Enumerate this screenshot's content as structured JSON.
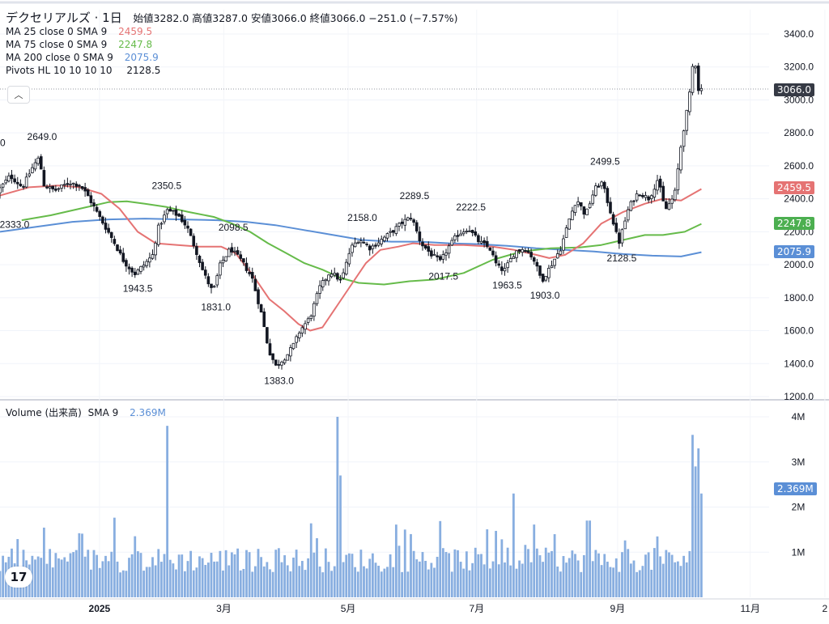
{
  "header": {
    "title": "デクセリアルズ · 1日",
    "ohlc": "始値3282.0 高値3287.0 安値3066.0 終値3066.0 −251.0 (−7.57%)"
  },
  "indicators": [
    {
      "label": "MA 25 close 0 SMA 9",
      "value": "2459.5",
      "color": "#e57373"
    },
    {
      "label": "MA 75 close 0 SMA 9",
      "value": "2247.8",
      "color": "#66bb4a"
    },
    {
      "label": "MA 200 close 0 SMA 9",
      "value": "2075.9",
      "color": "#5b8fd6"
    },
    {
      "label": "Pivots HL 10 10 10 10",
      "value": "2128.5",
      "color": "#131722"
    }
  ],
  "volume_legend": {
    "label": "Volume (出来高)",
    "sub": "SMA 9",
    "value": "2.369M"
  },
  "price_tags": {
    "last": {
      "text": "3066.0",
      "color": "#363a45"
    },
    "ma25": {
      "text": "2459.5",
      "color": "#e57373"
    },
    "ma75": {
      "text": "2247.8",
      "color": "#4caf50"
    },
    "ma200": {
      "text": "2075.9",
      "color": "#5b8fd6"
    },
    "vol": {
      "text": "2.369M",
      "color": "#5b8fd6"
    }
  },
  "chart_data": {
    "type": "candlestick",
    "price_axis": {
      "ticks": [
        1200,
        1400,
        1600,
        1800,
        2000,
        2200,
        2400,
        2600,
        2800,
        3000,
        3200,
        3400
      ],
      "labels": [
        "1200.0",
        "1400.0",
        "1600.0",
        "1800.0",
        "2000.0",
        "2200.0",
        "2400.0",
        "2600.0",
        "2800.0",
        "3000.0",
        "3200.0",
        "3400.0"
      ],
      "range": [
        1200,
        3480
      ]
    },
    "volume_axis": {
      "labels": [
        "1M",
        "2M",
        "3M",
        "4M"
      ],
      "ticks": [
        1,
        2,
        3,
        4
      ],
      "range": [
        0,
        4.4
      ]
    },
    "x_labels": [
      {
        "t": 0.12,
        "text": "2025"
      },
      {
        "t": 0.27,
        "text": "3月"
      },
      {
        "t": 0.42,
        "text": "5月"
      },
      {
        "t": 0.575,
        "text": "7月"
      },
      {
        "t": 0.745,
        "text": "9月"
      },
      {
        "t": 0.905,
        "text": "11月"
      },
      {
        "t": 0.995,
        "text": "2"
      }
    ],
    "price_anchors": [
      [
        0.0,
        2440
      ],
      [
        0.018,
        2540
      ],
      [
        0.035,
        2470
      ],
      [
        0.05,
        2600
      ],
      [
        0.058,
        2649
      ],
      [
        0.065,
        2480
      ],
      [
        0.08,
        2450
      ],
      [
        0.1,
        2500
      ],
      [
        0.115,
        2480
      ],
      [
        0.125,
        2420
      ],
      [
        0.14,
        2300
      ],
      [
        0.16,
        2150
      ],
      [
        0.175,
        2020
      ],
      [
        0.19,
        1943.5
      ],
      [
        0.205,
        2010
      ],
      [
        0.215,
        2060
      ],
      [
        0.222,
        2220
      ],
      [
        0.235,
        2330
      ],
      [
        0.25,
        2300
      ],
      [
        0.262,
        2230
      ],
      [
        0.275,
        2080
      ],
      [
        0.285,
        1950
      ],
      [
        0.298,
        1831
      ],
      [
        0.308,
        2000
      ],
      [
        0.322,
        2098.5
      ],
      [
        0.338,
        2020
      ],
      [
        0.352,
        1920
      ],
      [
        0.365,
        1700
      ],
      [
        0.375,
        1480
      ],
      [
        0.385,
        1383
      ],
      [
        0.4,
        1450
      ],
      [
        0.41,
        1520
      ],
      [
        0.418,
        1600
      ],
      [
        0.432,
        1680
      ],
      [
        0.445,
        1860
      ],
      [
        0.46,
        1960
      ],
      [
        0.475,
        1900
      ],
      [
        0.488,
        2100
      ],
      [
        0.5,
        2158
      ],
      [
        0.515,
        2100
      ],
      [
        0.53,
        2150
      ],
      [
        0.545,
        2200
      ],
      [
        0.56,
        2260
      ],
      [
        0.572,
        2289.5
      ],
      [
        0.585,
        2130
      ],
      [
        0.6,
        2060
      ],
      [
        0.612,
        2017.5
      ],
      [
        0.622,
        2100
      ],
      [
        0.635,
        2180
      ],
      [
        0.65,
        2222.5
      ],
      [
        0.665,
        2140
      ],
      [
        0.68,
        2100
      ],
      [
        0.69,
        1990
      ],
      [
        0.7,
        1963.5
      ],
      [
        0.715,
        2080
      ],
      [
        0.728,
        2100
      ],
      [
        0.74,
        2040
      ],
      [
        0.752,
        1903
      ],
      [
        0.765,
        2000
      ],
      [
        0.778,
        2100
      ],
      [
        0.79,
        2280
      ],
      [
        0.8,
        2400
      ],
      [
        0.812,
        2300
      ],
      [
        0.825,
        2460
      ],
      [
        0.835,
        2499.5
      ],
      [
        0.848,
        2300
      ],
      [
        0.858,
        2128.5
      ],
      [
        0.872,
        2350
      ],
      [
        0.885,
        2440
      ],
      [
        0.9,
        2400
      ],
      [
        0.912,
        2520
      ],
      [
        0.922,
        2330
      ],
      [
        0.935,
        2420
      ],
      [
        0.945,
        2760
      ],
      [
        0.955,
        3000
      ],
      [
        0.962,
        3287
      ],
      [
        0.968,
        3066
      ]
    ],
    "ma25": [
      [
        0.0,
        2420
      ],
      [
        0.04,
        2470
      ],
      [
        0.08,
        2480
      ],
      [
        0.11,
        2470
      ],
      [
        0.14,
        2430
      ],
      [
        0.165,
        2340
      ],
      [
        0.19,
        2200
      ],
      [
        0.215,
        2130
      ],
      [
        0.245,
        2120
      ],
      [
        0.275,
        2110
      ],
      [
        0.305,
        2110
      ],
      [
        0.325,
        2070
      ],
      [
        0.35,
        1930
      ],
      [
        0.372,
        1790
      ],
      [
        0.392,
        1720
      ],
      [
        0.412,
        1640
      ],
      [
        0.428,
        1600
      ],
      [
        0.445,
        1620
      ],
      [
        0.465,
        1750
      ],
      [
        0.485,
        1880
      ],
      [
        0.505,
        2010
      ],
      [
        0.525,
        2090
      ],
      [
        0.55,
        2110
      ],
      [
        0.57,
        2130
      ],
      [
        0.6,
        2120
      ],
      [
        0.64,
        2120
      ],
      [
        0.68,
        2110
      ],
      [
        0.71,
        2090
      ],
      [
        0.74,
        2060
      ],
      [
        0.758,
        2040
      ],
      [
        0.78,
        2060
      ],
      [
        0.805,
        2130
      ],
      [
        0.83,
        2250
      ],
      [
        0.86,
        2320
      ],
      [
        0.89,
        2370
      ],
      [
        0.915,
        2400
      ],
      [
        0.94,
        2390
      ],
      [
        0.968,
        2459.5
      ]
    ],
    "ma75": [
      [
        0.03,
        2270
      ],
      [
        0.07,
        2300
      ],
      [
        0.11,
        2340
      ],
      [
        0.15,
        2380
      ],
      [
        0.175,
        2385
      ],
      [
        0.2,
        2370
      ],
      [
        0.23,
        2350
      ],
      [
        0.26,
        2320
      ],
      [
        0.295,
        2290
      ],
      [
        0.32,
        2250
      ],
      [
        0.345,
        2200
      ],
      [
        0.37,
        2130
      ],
      [
        0.395,
        2070
      ],
      [
        0.42,
        2010
      ],
      [
        0.445,
        1970
      ],
      [
        0.47,
        1920
      ],
      [
        0.495,
        1890
      ],
      [
        0.53,
        1880
      ],
      [
        0.565,
        1900
      ],
      [
        0.6,
        1910
      ],
      [
        0.64,
        1950
      ],
      [
        0.68,
        2030
      ],
      [
        0.72,
        2080
      ],
      [
        0.76,
        2100
      ],
      [
        0.8,
        2105
      ],
      [
        0.83,
        2120
      ],
      [
        0.86,
        2150
      ],
      [
        0.89,
        2180
      ],
      [
        0.915,
        2180
      ],
      [
        0.945,
        2200
      ],
      [
        0.968,
        2247.8
      ]
    ],
    "ma200": [
      [
        0.0,
        2200
      ],
      [
        0.05,
        2230
      ],
      [
        0.1,
        2260
      ],
      [
        0.15,
        2275
      ],
      [
        0.2,
        2280
      ],
      [
        0.25,
        2275
      ],
      [
        0.3,
        2270
      ],
      [
        0.34,
        2260
      ],
      [
        0.38,
        2240
      ],
      [
        0.42,
        2210
      ],
      [
        0.46,
        2180
      ],
      [
        0.5,
        2150
      ],
      [
        0.54,
        2140
      ],
      [
        0.58,
        2140
      ],
      [
        0.62,
        2130
      ],
      [
        0.66,
        2125
      ],
      [
        0.7,
        2115
      ],
      [
        0.74,
        2100
      ],
      [
        0.78,
        2090
      ],
      [
        0.82,
        2080
      ],
      [
        0.86,
        2065
      ],
      [
        0.9,
        2055
      ],
      [
        0.94,
        2050
      ],
      [
        0.968,
        2075.9
      ]
    ],
    "pivots": [
      {
        "t": 0.0,
        "price": 2649,
        "label": "0",
        "pos": "above-left"
      },
      {
        "t": 0.058,
        "price": 2649,
        "label": "2649.0",
        "pos": "above"
      },
      {
        "t": 0.02,
        "price": 2333,
        "label": "2333.0",
        "pos": "below"
      },
      {
        "t": 0.19,
        "price": 1943.5,
        "label": "1943.5",
        "pos": "below"
      },
      {
        "t": 0.23,
        "price": 2350.5,
        "label": "2350.5",
        "pos": "above"
      },
      {
        "t": 0.298,
        "price": 1831,
        "label": "1831.0",
        "pos": "below"
      },
      {
        "t": 0.322,
        "price": 2098.5,
        "label": "2098.5",
        "pos": "above"
      },
      {
        "t": 0.385,
        "price": 1383,
        "label": "1383.0",
        "pos": "below"
      },
      {
        "t": 0.5,
        "price": 2158,
        "label": "2158.0",
        "pos": "above"
      },
      {
        "t": 0.572,
        "price": 2289.5,
        "label": "2289.5",
        "pos": "above"
      },
      {
        "t": 0.612,
        "price": 2017.5,
        "label": "2017.5",
        "pos": "below"
      },
      {
        "t": 0.65,
        "price": 2222.5,
        "label": "2222.5",
        "pos": "above"
      },
      {
        "t": 0.7,
        "price": 1963.5,
        "label": "1963.5",
        "pos": "below"
      },
      {
        "t": 0.752,
        "price": 1903,
        "label": "1903.0",
        "pos": "below"
      },
      {
        "t": 0.835,
        "price": 2499.5,
        "label": "2499.5",
        "pos": "above"
      },
      {
        "t": 0.858,
        "price": 2128.5,
        "label": "2128.5",
        "pos": "below"
      }
    ],
    "volume_spikes": [
      {
        "t": 0.23,
        "v": 3.8
      },
      {
        "t": 0.465,
        "v": 4.0
      },
      {
        "t": 0.47,
        "v": 2.7
      },
      {
        "t": 0.71,
        "v": 2.3
      },
      {
        "t": 0.812,
        "v": 1.7
      },
      {
        "t": 0.957,
        "v": 3.6
      },
      {
        "t": 0.962,
        "v": 2.9
      },
      {
        "t": 0.966,
        "v": 3.3
      },
      {
        "t": 0.97,
        "v": 2.3
      }
    ],
    "last_price": 3066.0,
    "grid": true
  }
}
